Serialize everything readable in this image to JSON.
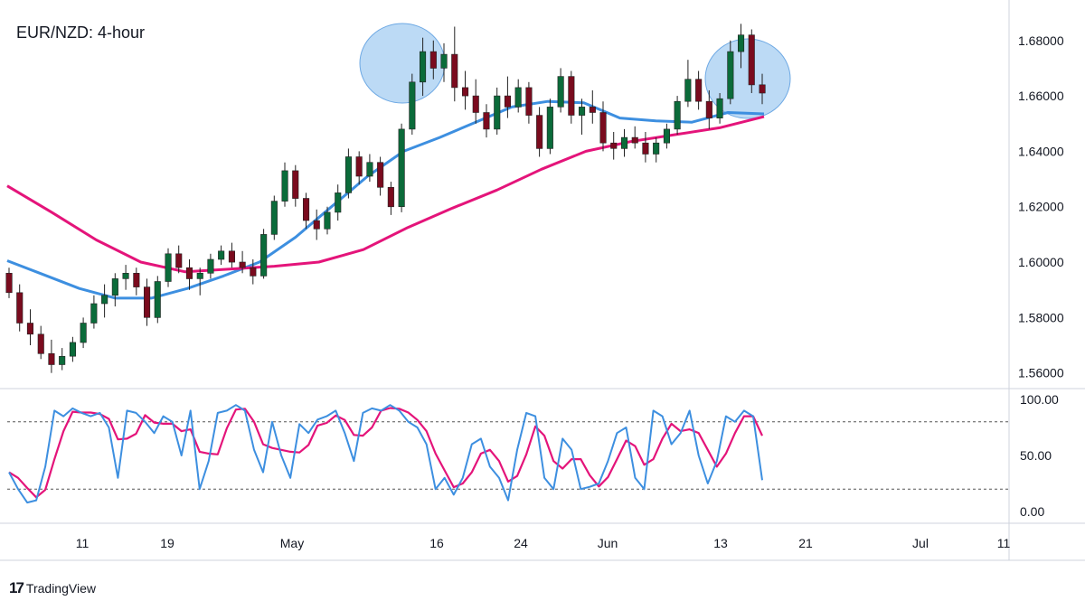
{
  "chart_data": {
    "type": "candlestick",
    "title": "EUR/NZD: 4-hour",
    "price_axis": {
      "range": [
        1.555,
        1.692
      ],
      "ticks": [
        1.68,
        1.66,
        1.64,
        1.62,
        1.6,
        1.58,
        1.56
      ],
      "tick_labels": [
        "1.68000",
        "1.66000",
        "1.64000",
        "1.62000",
        "1.60000",
        "1.58000",
        "1.56000"
      ]
    },
    "time_axis": {
      "tick_labels": [
        "11",
        "19",
        "May",
        "16",
        "24",
        "Jun",
        "13",
        "21",
        "Jul",
        "11"
      ]
    },
    "candles": [
      [
        1.596,
        1.598,
        1.587,
        1.589
      ],
      [
        1.589,
        1.592,
        1.575,
        1.578
      ],
      [
        1.578,
        1.583,
        1.57,
        1.574
      ],
      [
        1.574,
        1.577,
        1.565,
        1.567
      ],
      [
        1.567,
        1.572,
        1.56,
        1.563
      ],
      [
        1.563,
        1.569,
        1.561,
        1.566
      ],
      [
        1.566,
        1.573,
        1.564,
        1.571
      ],
      [
        1.571,
        1.58,
        1.569,
        1.578
      ],
      [
        1.578,
        1.588,
        1.576,
        1.585
      ],
      [
        1.585,
        1.592,
        1.58,
        1.588
      ],
      [
        1.588,
        1.596,
        1.584,
        1.594
      ],
      [
        1.594,
        1.599,
        1.59,
        1.596
      ],
      [
        1.596,
        1.598,
        1.588,
        1.591
      ],
      [
        1.591,
        1.594,
        1.577,
        1.58
      ],
      [
        1.58,
        1.595,
        1.578,
        1.593
      ],
      [
        1.593,
        1.605,
        1.591,
        1.603
      ],
      [
        1.603,
        1.606,
        1.596,
        1.598
      ],
      [
        1.598,
        1.601,
        1.59,
        1.594
      ],
      [
        1.594,
        1.598,
        1.588,
        1.596
      ],
      [
        1.596,
        1.603,
        1.594,
        1.601
      ],
      [
        1.601,
        1.606,
        1.599,
        1.604
      ],
      [
        1.604,
        1.607,
        1.598,
        1.6
      ],
      [
        1.6,
        1.604,
        1.596,
        1.598
      ],
      [
        1.598,
        1.601,
        1.592,
        1.595
      ],
      [
        1.595,
        1.612,
        1.594,
        1.61
      ],
      [
        1.61,
        1.624,
        1.608,
        1.622
      ],
      [
        1.622,
        1.636,
        1.62,
        1.633
      ],
      [
        1.633,
        1.635,
        1.62,
        1.623
      ],
      [
        1.623,
        1.625,
        1.612,
        1.615
      ],
      [
        1.615,
        1.619,
        1.608,
        1.612
      ],
      [
        1.612,
        1.62,
        1.61,
        1.618
      ],
      [
        1.618,
        1.628,
        1.615,
        1.625
      ],
      [
        1.625,
        1.641,
        1.623,
        1.638
      ],
      [
        1.638,
        1.64,
        1.628,
        1.631
      ],
      [
        1.631,
        1.639,
        1.629,
        1.636
      ],
      [
        1.636,
        1.638,
        1.624,
        1.627
      ],
      [
        1.627,
        1.629,
        1.617,
        1.62
      ],
      [
        1.62,
        1.65,
        1.618,
        1.648
      ],
      [
        1.648,
        1.668,
        1.646,
        1.665
      ],
      [
        1.665,
        1.681,
        1.66,
        1.676
      ],
      [
        1.676,
        1.68,
        1.666,
        1.67
      ],
      [
        1.67,
        1.679,
        1.665,
        1.675
      ],
      [
        1.675,
        1.685,
        1.658,
        1.663
      ],
      [
        1.663,
        1.669,
        1.655,
        1.66
      ],
      [
        1.66,
        1.666,
        1.65,
        1.654
      ],
      [
        1.654,
        1.657,
        1.645,
        1.648
      ],
      [
        1.648,
        1.663,
        1.646,
        1.66
      ],
      [
        1.66,
        1.667,
        1.652,
        1.656
      ],
      [
        1.656,
        1.666,
        1.654,
        1.663
      ],
      [
        1.663,
        1.665,
        1.65,
        1.653
      ],
      [
        1.653,
        1.656,
        1.638,
        1.641
      ],
      [
        1.641,
        1.659,
        1.639,
        1.656
      ],
      [
        1.656,
        1.67,
        1.654,
        1.667
      ],
      [
        1.667,
        1.669,
        1.65,
        1.653
      ],
      [
        1.653,
        1.659,
        1.646,
        1.656
      ],
      [
        1.656,
        1.662,
        1.65,
        1.654
      ],
      [
        1.654,
        1.658,
        1.64,
        1.643
      ],
      [
        1.643,
        1.647,
        1.637,
        1.641
      ],
      [
        1.641,
        1.648,
        1.638,
        1.645
      ],
      [
        1.645,
        1.649,
        1.641,
        1.643
      ],
      [
        1.643,
        1.647,
        1.636,
        1.639
      ],
      [
        1.639,
        1.645,
        1.636,
        1.643
      ],
      [
        1.643,
        1.65,
        1.641,
        1.648
      ],
      [
        1.648,
        1.66,
        1.646,
        1.658
      ],
      [
        1.658,
        1.673,
        1.656,
        1.666
      ],
      [
        1.666,
        1.669,
        1.655,
        1.658
      ],
      [
        1.658,
        1.662,
        1.648,
        1.652
      ],
      [
        1.652,
        1.661,
        1.65,
        1.659
      ],
      [
        1.659,
        1.68,
        1.657,
        1.676
      ],
      [
        1.676,
        1.686,
        1.67,
        1.682
      ],
      [
        1.682,
        1.684,
        1.661,
        1.664
      ],
      [
        1.664,
        1.668,
        1.657,
        1.661
      ]
    ],
    "moving_averages": [
      {
        "color": "#3d8fe0",
        "values": [
          1.6005,
          1.5955,
          1.5905,
          1.587,
          1.587,
          1.5905,
          1.595,
          1.6,
          1.609,
          1.62,
          1.631,
          1.64,
          1.645,
          1.6505,
          1.656,
          1.658,
          1.6575,
          1.652,
          1.651,
          1.6505,
          1.654,
          1.6535
        ]
      },
      {
        "color": "#e4147a",
        "values": [
          1.6275,
          1.618,
          1.608,
          1.6,
          1.5965,
          1.5975,
          1.5985,
          1.6,
          1.6045,
          1.6125,
          1.6195,
          1.626,
          1.6335,
          1.64,
          1.6435,
          1.646,
          1.6485,
          1.6525
        ]
      }
    ],
    "oscillator": {
      "range": [
        0,
        100
      ],
      "ticks": [
        100,
        50,
        0
      ],
      "tick_labels": [
        "100.00",
        "50.00",
        "0.00"
      ],
      "overbought": 80,
      "oversold": 20,
      "line_colors": [
        "#3d8fe0",
        "#e4147a"
      ],
      "values": [
        35,
        20,
        8,
        10,
        40,
        90,
        85,
        92,
        88,
        85,
        88,
        75,
        30,
        90,
        88,
        80,
        70,
        85,
        80,
        50,
        90,
        20,
        45,
        88,
        90,
        95,
        90,
        55,
        35,
        80,
        50,
        30,
        78,
        70,
        82,
        85,
        90,
        70,
        45,
        88,
        92,
        90,
        95,
        90,
        80,
        75,
        60,
        20,
        30,
        15,
        30,
        60,
        65,
        40,
        30,
        10,
        55,
        88,
        85,
        30,
        20,
        65,
        55,
        20,
        22,
        25,
        45,
        70,
        75,
        30,
        20,
        90,
        85,
        60,
        70,
        90,
        50,
        25,
        45,
        85,
        80,
        90,
        85,
        28
      ]
    },
    "highlights": [
      "swing-high-1",
      "swing-high-2"
    ],
    "grid": false,
    "legend": "none"
  },
  "brand": {
    "logo": "17",
    "name": "TradingView"
  }
}
